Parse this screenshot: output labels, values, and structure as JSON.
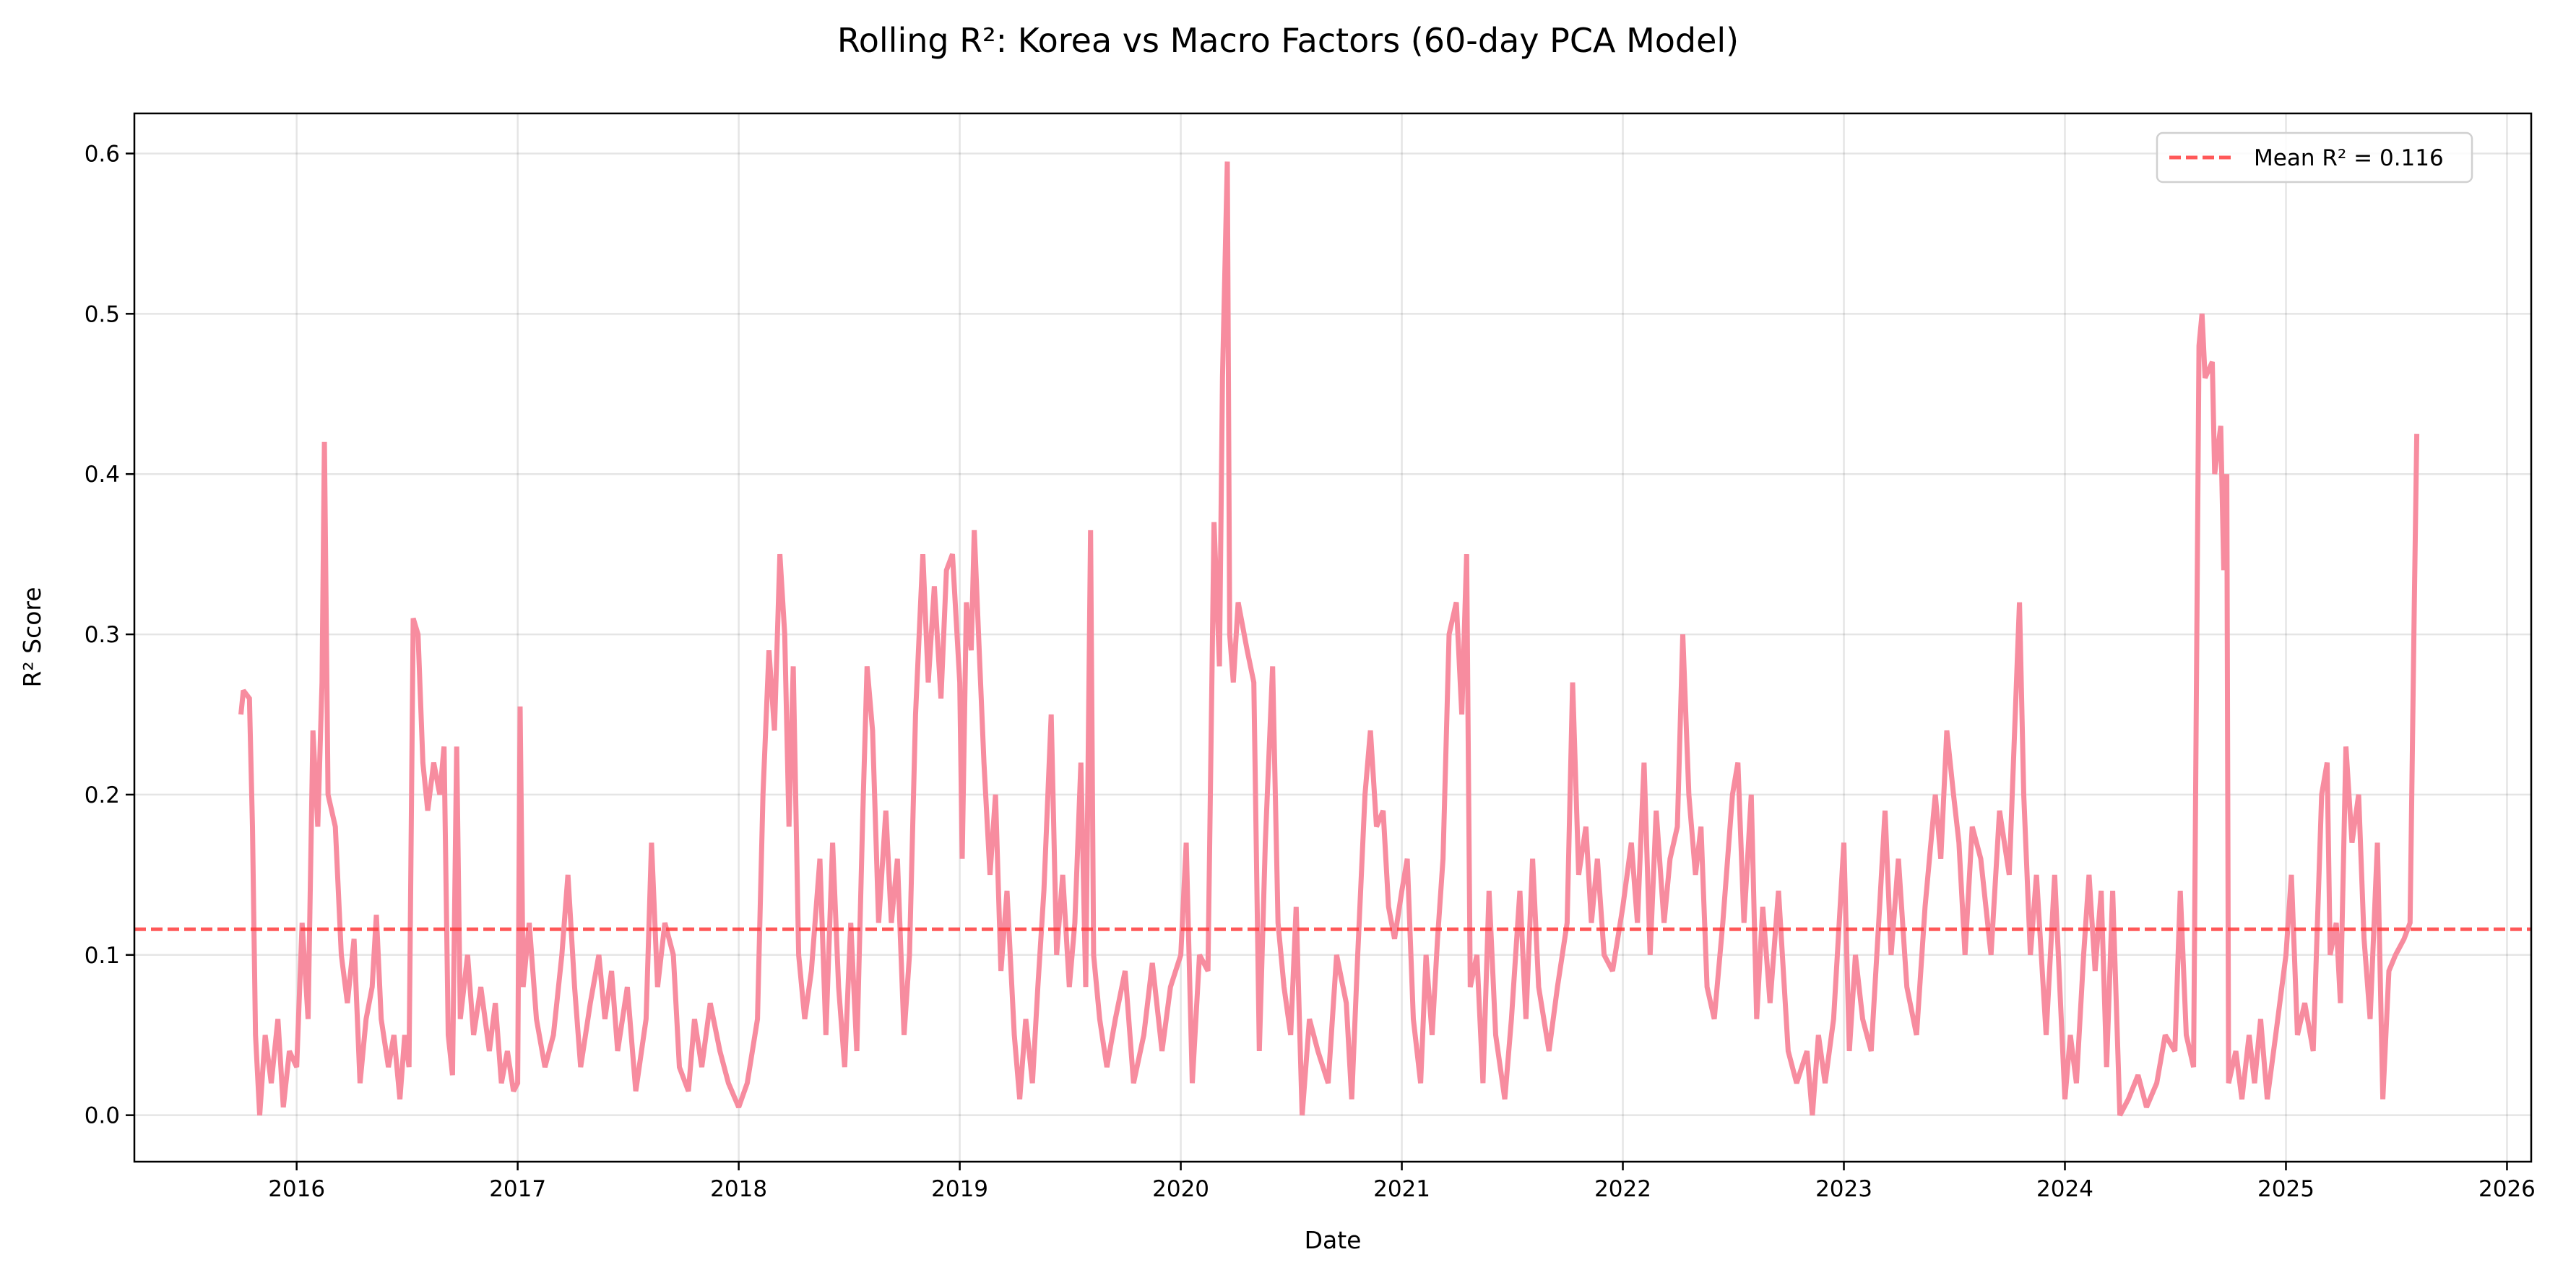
{
  "chart_data": {
    "type": "line",
    "title": "Rolling R²: Korea vs Macro Factors (60-day PCA Model)",
    "xlabel": "Date",
    "ylabel": "R² Score",
    "xlim": [
      "2015-04-08",
      "2026-02-10"
    ],
    "ylim": [
      -0.029,
      0.625
    ],
    "x_ticks": [
      "2016",
      "2017",
      "2018",
      "2019",
      "2020",
      "2021",
      "2022",
      "2023",
      "2024",
      "2025",
      "2026"
    ],
    "y_ticks": [
      "0.0",
      "0.1",
      "0.2",
      "0.3",
      "0.4",
      "0.5",
      "0.6"
    ],
    "grid": true,
    "legend_position": "top-right",
    "series_color": "#f78c9f",
    "mean_line": {
      "label": "Mean R² = 0.116",
      "value": 0.116,
      "color": "#ff3b3b",
      "style": "dashed"
    },
    "series": [
      {
        "x": [
          "2015-10-01",
          "2015-10-05",
          "2015-10-15",
          "2015-10-20",
          "2015-10-25",
          "2015-11-01",
          "2015-11-10",
          "2015-11-20",
          "2015-12-01",
          "2015-12-10",
          "2015-12-20",
          "2016-01-01",
          "2016-01-10",
          "2016-01-20",
          "2016-01-28",
          "2016-02-05",
          "2016-02-12",
          "2016-02-16",
          "2016-02-22",
          "2016-03-05",
          "2016-03-15",
          "2016-03-25",
          "2016-04-05",
          "2016-04-15",
          "2016-04-25",
          "2016-05-05",
          "2016-05-12",
          "2016-05-20",
          "2016-06-01",
          "2016-06-10",
          "2016-06-20",
          "2016-06-28",
          "2016-07-05",
          "2016-07-12",
          "2016-07-20",
          "2016-07-28",
          "2016-08-05",
          "2016-08-15",
          "2016-08-25",
          "2016-09-01",
          "2016-09-08",
          "2016-09-15",
          "2016-09-22",
          "2016-09-28",
          "2016-10-10",
          "2016-10-20",
          "2016-11-01",
          "2016-11-15",
          "2016-11-25",
          "2016-12-05",
          "2016-12-15",
          "2016-12-25",
          "2017-01-01",
          "2017-01-05",
          "2017-01-10",
          "2017-01-20",
          "2017-02-01",
          "2017-02-15",
          "2017-03-01",
          "2017-03-15",
          "2017-03-25",
          "2017-04-05",
          "2017-04-15",
          "2017-05-01",
          "2017-05-15",
          "2017-05-25",
          "2017-06-05",
          "2017-06-15",
          "2017-07-01",
          "2017-07-15",
          "2017-08-01",
          "2017-08-10",
          "2017-08-20",
          "2017-09-01",
          "2017-09-15",
          "2017-09-25",
          "2017-10-10",
          "2017-10-20",
          "2017-11-01",
          "2017-11-15",
          "2017-12-01",
          "2017-12-15",
          "2018-01-01",
          "2018-01-15",
          "2018-02-01",
          "2018-02-10",
          "2018-02-20",
          "2018-03-01",
          "2018-03-10",
          "2018-03-18",
          "2018-03-25",
          "2018-04-01",
          "2018-04-10",
          "2018-04-20",
          "2018-05-01",
          "2018-05-15",
          "2018-05-25",
          "2018-06-05",
          "2018-06-15",
          "2018-06-25",
          "2018-07-05",
          "2018-07-15",
          "2018-07-25",
          "2018-08-01",
          "2018-08-10",
          "2018-08-20",
          "2018-09-01",
          "2018-09-10",
          "2018-09-20",
          "2018-10-01",
          "2018-10-10",
          "2018-10-20",
          "2018-11-01",
          "2018-11-10",
          "2018-11-20",
          "2018-12-01",
          "2018-12-10",
          "2018-12-20",
          "2019-01-01",
          "2019-01-05",
          "2019-01-12",
          "2019-01-20",
          "2019-01-25",
          "2019-02-01",
          "2019-02-10",
          "2019-02-20",
          "2019-03-01",
          "2019-03-10",
          "2019-03-20",
          "2019-04-01",
          "2019-04-10",
          "2019-04-20",
          "2019-05-01",
          "2019-05-10",
          "2019-05-20",
          "2019-06-01",
          "2019-06-10",
          "2019-06-20",
          "2019-07-01",
          "2019-07-10",
          "2019-07-20",
          "2019-07-28",
          "2019-08-05",
          "2019-08-10",
          "2019-08-20",
          "2019-09-01",
          "2019-09-15",
          "2019-10-01",
          "2019-10-15",
          "2019-11-01",
          "2019-11-15",
          "2019-12-01",
          "2019-12-15",
          "2020-01-01",
          "2020-01-10",
          "2020-01-20",
          "2020-02-01",
          "2020-02-15",
          "2020-02-25",
          "2020-03-05",
          "2020-03-10",
          "2020-03-18",
          "2020-03-22",
          "2020-03-28",
          "2020-04-05",
          "2020-04-20",
          "2020-05-01",
          "2020-05-10",
          "2020-05-20",
          "2020-06-01",
          "2020-06-10",
          "2020-06-20",
          "2020-07-01",
          "2020-07-10",
          "2020-07-20",
          "2020-08-01",
          "2020-08-15",
          "2020-09-01",
          "2020-09-15",
          "2020-10-01",
          "2020-10-10",
          "2020-10-20",
          "2020-11-01",
          "2020-11-10",
          "2020-11-20",
          "2020-12-01",
          "2020-12-10",
          "2020-12-20",
          "2021-01-01",
          "2021-01-10",
          "2021-01-20",
          "2021-02-01",
          "2021-02-10",
          "2021-02-20",
          "2021-03-01",
          "2021-03-10",
          "2021-03-20",
          "2021-04-01",
          "2021-04-10",
          "2021-04-18",
          "2021-04-24",
          "2021-05-05",
          "2021-05-15",
          "2021-05-25",
          "2021-06-05",
          "2021-06-20",
          "2021-07-01",
          "2021-07-15",
          "2021-07-25",
          "2021-08-05",
          "2021-08-15",
          "2021-09-01",
          "2021-09-15",
          "2021-10-01",
          "2021-10-10",
          "2021-10-20",
          "2021-11-01",
          "2021-11-10",
          "2021-11-20",
          "2021-12-01",
          "2021-12-15",
          "2022-01-01",
          "2022-01-15",
          "2022-01-25",
          "2022-02-05",
          "2022-02-15",
          "2022-02-25",
          "2022-03-10",
          "2022-03-20",
          "2022-04-01",
          "2022-04-10",
          "2022-04-20",
          "2022-05-01",
          "2022-05-10",
          "2022-05-20",
          "2022-06-01",
          "2022-06-15",
          "2022-07-01",
          "2022-07-10",
          "2022-07-20",
          "2022-08-01",
          "2022-08-10",
          "2022-08-20",
          "2022-09-01",
          "2022-09-15",
          "2022-10-01",
          "2022-10-15",
          "2022-11-01",
          "2022-11-10",
          "2022-11-20",
          "2022-12-01",
          "2022-12-15",
          "2023-01-01",
          "2023-01-10",
          "2023-01-20",
          "2023-02-01",
          "2023-02-15",
          "2023-03-01",
          "2023-03-10",
          "2023-03-20",
          "2023-04-01",
          "2023-04-15",
          "2023-05-01",
          "2023-05-15",
          "2023-06-01",
          "2023-06-10",
          "2023-06-20",
          "2023-07-01",
          "2023-07-10",
          "2023-07-20",
          "2023-08-01",
          "2023-08-15",
          "2023-09-01",
          "2023-09-15",
          "2023-10-01",
          "2023-10-10",
          "2023-10-18",
          "2023-10-25",
          "2023-11-05",
          "2023-11-15",
          "2023-12-01",
          "2023-12-15",
          "2024-01-01",
          "2024-01-10",
          "2024-01-20",
          "2024-02-01",
          "2024-02-10",
          "2024-02-20",
          "2024-03-01",
          "2024-03-10",
          "2024-03-20",
          "2024-04-01",
          "2024-04-15",
          "2024-05-01",
          "2024-05-15",
          "2024-06-01",
          "2024-06-15",
          "2024-07-01",
          "2024-07-10",
          "2024-07-20",
          "2024-08-01",
          "2024-08-10",
          "2024-08-15",
          "2024-08-20",
          "2024-09-01",
          "2024-09-05",
          "2024-09-15",
          "2024-09-20",
          "2024-09-25",
          "2024-09-28",
          "2024-10-10",
          "2024-10-20",
          "2024-11-01",
          "2024-11-10",
          "2024-11-20",
          "2024-12-01",
          "2024-12-15",
          "2025-01-01",
          "2025-01-10",
          "2025-01-20",
          "2025-02-01",
          "2025-02-15",
          "2025-03-01",
          "2025-03-10",
          "2025-03-15",
          "2025-03-25",
          "2025-04-01",
          "2025-04-10",
          "2025-04-20",
          "2025-05-01",
          "2025-05-10",
          "2025-05-20",
          "2025-06-01",
          "2025-06-10",
          "2025-06-20",
          "2025-07-01",
          "2025-07-15",
          "2025-07-25",
          "2025-08-01",
          "2025-08-05"
        ],
        "y": [
          0.25,
          0.265,
          0.26,
          0.18,
          0.05,
          0.0,
          0.05,
          0.02,
          0.06,
          0.005,
          0.04,
          0.03,
          0.12,
          0.06,
          0.24,
          0.18,
          0.27,
          0.42,
          0.2,
          0.18,
          0.1,
          0.07,
          0.11,
          0.02,
          0.06,
          0.08,
          0.125,
          0.06,
          0.03,
          0.05,
          0.01,
          0.05,
          0.03,
          0.31,
          0.3,
          0.22,
          0.19,
          0.22,
          0.2,
          0.23,
          0.05,
          0.025,
          0.23,
          0.06,
          0.1,
          0.05,
          0.08,
          0.04,
          0.07,
          0.02,
          0.04,
          0.015,
          0.02,
          0.255,
          0.08,
          0.12,
          0.06,
          0.03,
          0.05,
          0.1,
          0.15,
          0.08,
          0.03,
          0.07,
          0.1,
          0.06,
          0.09,
          0.04,
          0.08,
          0.015,
          0.06,
          0.17,
          0.08,
          0.12,
          0.1,
          0.03,
          0.015,
          0.06,
          0.03,
          0.07,
          0.04,
          0.02,
          0.005,
          0.02,
          0.06,
          0.2,
          0.29,
          0.24,
          0.35,
          0.3,
          0.18,
          0.28,
          0.1,
          0.06,
          0.09,
          0.16,
          0.05,
          0.17,
          0.08,
          0.03,
          0.12,
          0.04,
          0.19,
          0.28,
          0.24,
          0.12,
          0.19,
          0.12,
          0.16,
          0.05,
          0.1,
          0.25,
          0.35,
          0.27,
          0.33,
          0.26,
          0.34,
          0.35,
          0.27,
          0.16,
          0.32,
          0.29,
          0.365,
          0.3,
          0.22,
          0.15,
          0.2,
          0.09,
          0.14,
          0.05,
          0.01,
          0.06,
          0.02,
          0.08,
          0.14,
          0.25,
          0.1,
          0.15,
          0.08,
          0.12,
          0.22,
          0.08,
          0.365,
          0.1,
          0.06,
          0.03,
          0.06,
          0.09,
          0.02,
          0.05,
          0.095,
          0.04,
          0.08,
          0.1,
          0.17,
          0.02,
          0.1,
          0.09,
          0.37,
          0.28,
          0.46,
          0.595,
          0.3,
          0.27,
          0.32,
          0.29,
          0.27,
          0.04,
          0.17,
          0.28,
          0.12,
          0.08,
          0.05,
          0.13,
          0.0,
          0.06,
          0.04,
          0.02,
          0.1,
          0.07,
          0.01,
          0.1,
          0.2,
          0.24,
          0.18,
          0.19,
          0.13,
          0.11,
          0.14,
          0.16,
          0.06,
          0.02,
          0.1,
          0.05,
          0.11,
          0.16,
          0.3,
          0.32,
          0.25,
          0.35,
          0.08,
          0.1,
          0.02,
          0.14,
          0.05,
          0.01,
          0.06,
          0.14,
          0.06,
          0.16,
          0.08,
          0.04,
          0.08,
          0.12,
          0.27,
          0.15,
          0.18,
          0.12,
          0.16,
          0.1,
          0.09,
          0.13,
          0.17,
          0.12,
          0.22,
          0.1,
          0.19,
          0.12,
          0.16,
          0.18,
          0.3,
          0.2,
          0.15,
          0.18,
          0.08,
          0.06,
          0.12,
          0.2,
          0.22,
          0.12,
          0.2,
          0.06,
          0.13,
          0.07,
          0.14,
          0.04,
          0.02,
          0.04,
          0.0,
          0.05,
          0.02,
          0.06,
          0.17,
          0.04,
          0.1,
          0.06,
          0.04,
          0.13,
          0.19,
          0.1,
          0.16,
          0.08,
          0.05,
          0.13,
          0.2,
          0.16,
          0.24,
          0.2,
          0.17,
          0.1,
          0.18,
          0.16,
          0.1,
          0.19,
          0.15,
          0.24,
          0.32,
          0.2,
          0.1,
          0.15,
          0.05,
          0.15,
          0.01,
          0.05,
          0.02,
          0.1,
          0.15,
          0.09,
          0.14,
          0.03,
          0.14,
          0.0,
          0.01,
          0.025,
          0.005,
          0.02,
          0.05,
          0.04,
          0.14,
          0.05,
          0.03,
          0.48,
          0.5,
          0.46,
          0.47,
          0.4,
          0.43,
          0.34,
          0.4,
          0.02,
          0.04,
          0.01,
          0.05,
          0.02,
          0.06,
          0.01,
          0.05,
          0.1,
          0.15,
          0.05,
          0.07,
          0.04,
          0.2,
          0.22,
          0.1,
          0.12,
          0.07,
          0.23,
          0.17,
          0.2,
          0.11,
          0.06,
          0.17,
          0.01,
          0.09,
          0.1,
          0.11,
          0.12,
          0.32,
          0.425
        ]
      }
    ]
  }
}
